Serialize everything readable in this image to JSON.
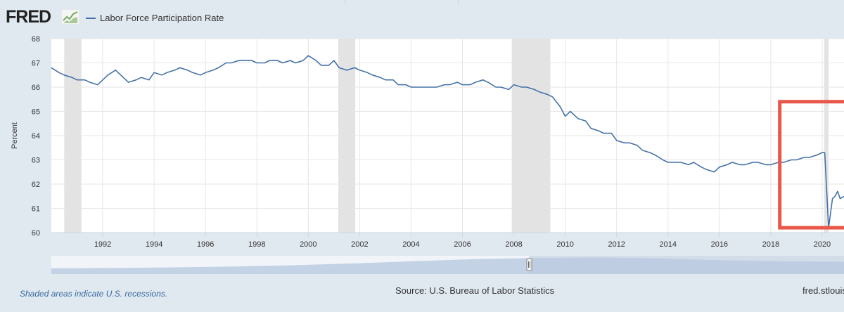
{
  "header": {
    "logo_text": "FRED",
    "legend_label": "Labor Force Participation Rate"
  },
  "footer": {
    "recession_note": "Shaded areas indicate U.S. recessions.",
    "source": "Source: U.S. Bureau of Labor Statistics",
    "site": "fred.stlouis"
  },
  "colors": {
    "series": "#4572a7",
    "recession": "#e3e3e3",
    "highlight": "#e8574a",
    "navigator": "#9fb5d6"
  },
  "icons": {
    "logo_chart": "line-chart-icon",
    "navigator_handle": "drag-handle-icon"
  },
  "chart_data": {
    "type": "line",
    "title": "",
    "series_name": "Labor Force Participation Rate",
    "xlabel": "",
    "ylabel": "Percent",
    "xlim": [
      1990.0,
      2020.85
    ],
    "ylim": [
      60,
      68
    ],
    "yticks": [
      "60",
      "61",
      "62",
      "63",
      "64",
      "65",
      "66",
      "67",
      "68"
    ],
    "xticks": [
      "1992",
      "1994",
      "1996",
      "1998",
      "2000",
      "2002",
      "2004",
      "2006",
      "2008",
      "2010",
      "2012",
      "2014",
      "2016",
      "2018",
      "2020"
    ],
    "recessions": [
      [
        1990.5,
        1991.17
      ],
      [
        2001.17,
        2001.83
      ],
      [
        2007.92,
        2009.42
      ],
      [
        2020.08,
        2020.25
      ]
    ],
    "highlight_box": {
      "x_from": 2018.35,
      "x_to": 2020.85,
      "y_from": 60.2,
      "y_to": 65.4
    },
    "x": [
      1990.0,
      1990.3,
      1990.5,
      1990.8,
      1991.0,
      1991.3,
      1991.5,
      1991.8,
      1992.0,
      1992.2,
      1992.5,
      1992.8,
      1993.0,
      1993.3,
      1993.5,
      1993.8,
      1994.0,
      1994.3,
      1994.5,
      1994.8,
      1995.0,
      1995.3,
      1995.5,
      1995.8,
      1996.0,
      1996.3,
      1996.5,
      1996.8,
      1997.0,
      1997.3,
      1997.5,
      1997.8,
      1998.0,
      1998.3,
      1998.5,
      1998.8,
      1999.0,
      1999.3,
      1999.5,
      1999.8,
      2000.0,
      2000.3,
      2000.5,
      2000.8,
      2001.0,
      2001.2,
      2001.5,
      2001.8,
      2002.0,
      2002.3,
      2002.5,
      2002.8,
      2003.0,
      2003.3,
      2003.5,
      2003.8,
      2004.0,
      2004.3,
      2004.5,
      2004.8,
      2005.0,
      2005.3,
      2005.5,
      2005.8,
      2006.0,
      2006.3,
      2006.5,
      2006.8,
      2007.0,
      2007.3,
      2007.5,
      2007.8,
      2008.0,
      2008.3,
      2008.5,
      2008.8,
      2009.0,
      2009.3,
      2009.5,
      2009.8,
      2010.0,
      2010.2,
      2010.5,
      2010.8,
      2011.0,
      2011.3,
      2011.5,
      2011.8,
      2012.0,
      2012.3,
      2012.5,
      2012.8,
      2013.0,
      2013.3,
      2013.5,
      2013.8,
      2014.0,
      2014.3,
      2014.5,
      2014.8,
      2015.0,
      2015.3,
      2015.5,
      2015.8,
      2016.0,
      2016.3,
      2016.5,
      2016.8,
      2017.0,
      2017.3,
      2017.5,
      2017.8,
      2018.0,
      2018.3,
      2018.5,
      2018.8,
      2019.0,
      2019.3,
      2019.5,
      2019.8,
      2020.0,
      2020.1,
      2020.25,
      2020.4,
      2020.5,
      2020.6,
      2020.7,
      2020.85
    ],
    "values": [
      66.8,
      66.6,
      66.5,
      66.4,
      66.3,
      66.3,
      66.2,
      66.1,
      66.3,
      66.5,
      66.7,
      66.4,
      66.2,
      66.3,
      66.4,
      66.3,
      66.6,
      66.5,
      66.6,
      66.7,
      66.8,
      66.7,
      66.6,
      66.5,
      66.6,
      66.7,
      66.8,
      67.0,
      67.0,
      67.1,
      67.1,
      67.1,
      67.0,
      67.0,
      67.1,
      67.1,
      67.0,
      67.1,
      67.0,
      67.1,
      67.3,
      67.1,
      66.9,
      66.9,
      67.1,
      66.8,
      66.7,
      66.8,
      66.7,
      66.6,
      66.5,
      66.4,
      66.3,
      66.3,
      66.1,
      66.1,
      66.0,
      66.0,
      66.0,
      66.0,
      66.0,
      66.1,
      66.1,
      66.2,
      66.1,
      66.1,
      66.2,
      66.3,
      66.2,
      66.0,
      66.0,
      65.9,
      66.1,
      66.0,
      66.0,
      65.9,
      65.8,
      65.7,
      65.6,
      65.2,
      64.8,
      65.0,
      64.7,
      64.6,
      64.3,
      64.2,
      64.1,
      64.1,
      63.8,
      63.7,
      63.7,
      63.6,
      63.4,
      63.3,
      63.2,
      63.0,
      62.9,
      62.9,
      62.9,
      62.8,
      62.9,
      62.7,
      62.6,
      62.5,
      62.7,
      62.8,
      62.9,
      62.8,
      62.8,
      62.9,
      62.9,
      62.8,
      62.8,
      62.9,
      62.9,
      63.0,
      63.0,
      63.1,
      63.1,
      63.2,
      63.3,
      63.3,
      60.2,
      61.4,
      61.5,
      61.7,
      61.4,
      61.5
    ]
  }
}
